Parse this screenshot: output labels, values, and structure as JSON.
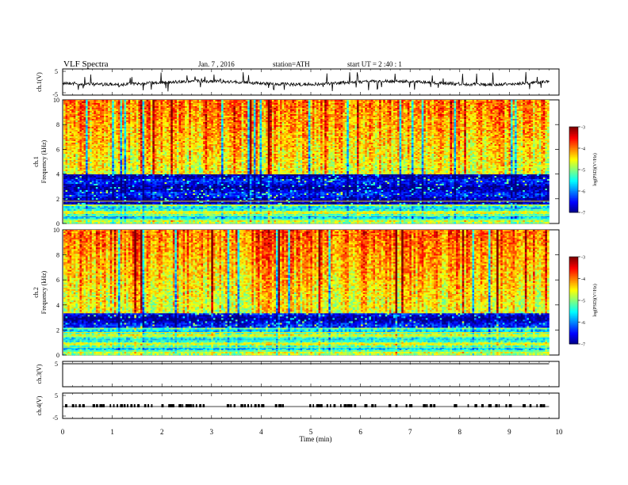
{
  "header": {
    "title": "VLF  Spectra",
    "date": "Jan. 7  , 2016",
    "station": "station=ATH",
    "start": "start  UT =   2  :40 : 1"
  },
  "chart_data": [
    {
      "type": "line",
      "ylabel": "ch.1(V)",
      "ylim": [
        -5,
        5
      ],
      "yticks": [
        "5",
        "-5"
      ],
      "description_level": 0
    },
    {
      "type": "heatmap",
      "ylabel": "ch.1\nFrequency  (kHz)",
      "ylabel_line1": "ch.1",
      "ylabel_line2": "Frequency  (kHz)",
      "ylim": [
        0,
        10
      ],
      "yticks": [
        "0",
        "2",
        "4",
        "6",
        "8",
        "10"
      ],
      "colorbar": {
        "label": "log(PSD)(V²/Hz)",
        "ticks": [
          "-3",
          "-4",
          "-5",
          "-6",
          "-7"
        ],
        "range": [
          -7,
          -3
        ]
      }
    },
    {
      "type": "heatmap",
      "ylabel_line1": "ch.2",
      "ylabel_line2": "Frequency  (kHz)",
      "ylim": [
        0,
        10
      ],
      "yticks": [
        "0",
        "2",
        "4",
        "6",
        "8",
        "10"
      ],
      "colorbar": {
        "label": "log(PSD)(V²/Hz)",
        "ticks": [
          "-3",
          "-4",
          "-5",
          "-6",
          "-7"
        ],
        "range": [
          -7,
          -3
        ]
      }
    },
    {
      "type": "line",
      "ylabel": "ch.3(V)",
      "ylim": [
        -5,
        5
      ],
      "yticks": [
        "5"
      ]
    },
    {
      "type": "line",
      "ylabel": "ch.4(V)",
      "ylim": [
        -5,
        5
      ],
      "yticks": [
        "5",
        "-5"
      ]
    }
  ],
  "xaxis": {
    "label": "Time  (min)",
    "ticks": [
      "0",
      "1",
      "2",
      "3",
      "4",
      "5",
      "6",
      "7",
      "8",
      "9",
      "10"
    ],
    "xlim": [
      0,
      10
    ],
    "data_end": 9.8
  }
}
